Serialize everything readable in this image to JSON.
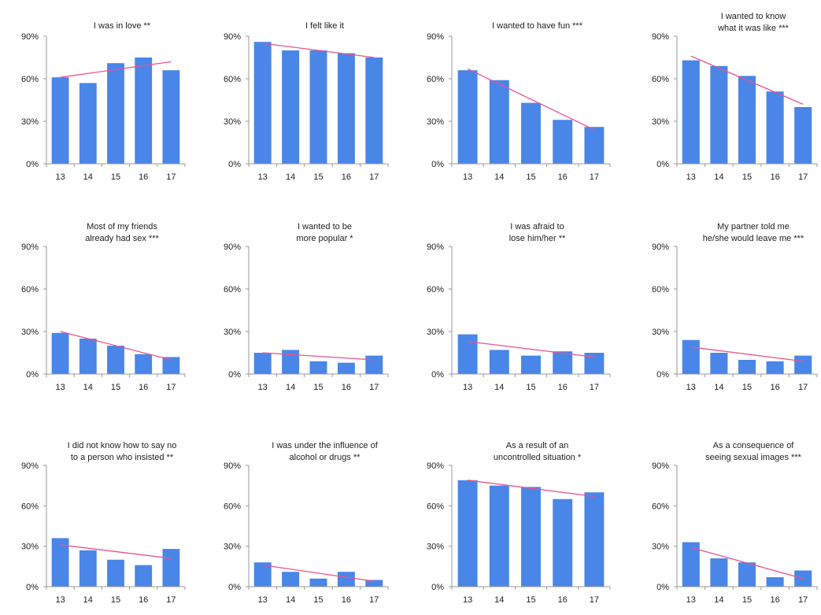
{
  "colors": {
    "bar": "#4a86e8",
    "trend": "#e8548c",
    "axis": "#9a9a9a",
    "text": "#222222"
  },
  "chart_data": [
    {
      "type": "bar",
      "title": "I was in love **",
      "categories": [
        "13",
        "14",
        "15",
        "16",
        "17"
      ],
      "values": [
        61,
        57,
        71,
        75,
        66
      ],
      "trend": [
        61,
        72
      ],
      "yticks": [
        "0%",
        "30%",
        "60%",
        "90%"
      ],
      "ylim": [
        0,
        90
      ]
    },
    {
      "type": "bar",
      "title": "I felt like it",
      "categories": [
        "13",
        "14",
        "15",
        "16",
        "17"
      ],
      "values": [
        86,
        80,
        80,
        78,
        75
      ],
      "trend": [
        85,
        75
      ],
      "yticks": [
        "0%",
        "30%",
        "60%",
        "90%"
      ],
      "ylim": [
        0,
        90
      ]
    },
    {
      "type": "bar",
      "title": "I wanted to have fun ***",
      "categories": [
        "13",
        "14",
        "15",
        "16",
        "17"
      ],
      "values": [
        66,
        59,
        43,
        31,
        26
      ],
      "trend": [
        67,
        24
      ],
      "yticks": [
        "0%",
        "30%",
        "60%",
        "90%"
      ],
      "ylim": [
        0,
        90
      ]
    },
    {
      "type": "bar",
      "title": "I wanted to know what it was like ***",
      "categories": [
        "13",
        "14",
        "15",
        "16",
        "17"
      ],
      "values": [
        73,
        69,
        62,
        51,
        40
      ],
      "trend": [
        76,
        42
      ],
      "yticks": [
        "0%",
        "30%",
        "60%",
        "90%"
      ],
      "ylim": [
        0,
        90
      ]
    },
    {
      "type": "bar",
      "title": "Most of my friends already had sex ***",
      "categories": [
        "13",
        "14",
        "15",
        "16",
        "17"
      ],
      "values": [
        29,
        25,
        20,
        14,
        12
      ],
      "trend": [
        30,
        10
      ],
      "yticks": [
        "0%",
        "30%",
        "60%",
        "90%"
      ],
      "ylim": [
        0,
        90
      ]
    },
    {
      "type": "bar",
      "title": "I wanted to be more popular *",
      "categories": [
        "13",
        "14",
        "15",
        "16",
        "17"
      ],
      "values": [
        15,
        17,
        9,
        8,
        13
      ],
      "trend": [
        15,
        10
      ],
      "yticks": [
        "0%",
        "30%",
        "60%",
        "90%"
      ],
      "ylim": [
        0,
        90
      ]
    },
    {
      "type": "bar",
      "title": "I was afraid to lose him/her **",
      "categories": [
        "13",
        "14",
        "15",
        "16",
        "17"
      ],
      "values": [
        28,
        17,
        13,
        16,
        15
      ],
      "trend": [
        23,
        12
      ],
      "yticks": [
        "0%",
        "30%",
        "60%",
        "90%"
      ],
      "ylim": [
        0,
        90
      ]
    },
    {
      "type": "bar",
      "title": "My partner told me he/she would leave me ***",
      "categories": [
        "13",
        "14",
        "15",
        "16",
        "17"
      ],
      "values": [
        24,
        15,
        10,
        9,
        13
      ],
      "trend": [
        19,
        9
      ],
      "yticks": [
        "0%",
        "30%",
        "60%",
        "90%"
      ],
      "ylim": [
        0,
        90
      ]
    },
    {
      "type": "bar",
      "title": "I did not know how to say no to a person who insisted **",
      "categories": [
        "13",
        "14",
        "15",
        "16",
        "17"
      ],
      "values": [
        36,
        27,
        20,
        16,
        28
      ],
      "trend": [
        31,
        21
      ],
      "yticks": [
        "0%",
        "30%",
        "60%",
        "90%"
      ],
      "ylim": [
        0,
        90
      ]
    },
    {
      "type": "bar",
      "title": "I was under the influence of alcohol or drugs **",
      "categories": [
        "13",
        "14",
        "15",
        "16",
        "17"
      ],
      "values": [
        18,
        11,
        6,
        11,
        5
      ],
      "trend": [
        16,
        4
      ],
      "yticks": [
        "0%",
        "30%",
        "60%",
        "90%"
      ],
      "ylim": [
        0,
        90
      ]
    },
    {
      "type": "bar",
      "title": "As a result of an uncontrolled situation *",
      "categories": [
        "13",
        "14",
        "15",
        "16",
        "17"
      ],
      "values": [
        79,
        75,
        74,
        65,
        70
      ],
      "trend": [
        79,
        67
      ],
      "yticks": [
        "0%",
        "30%",
        "60%",
        "90%"
      ],
      "ylim": [
        0,
        90
      ]
    },
    {
      "type": "bar",
      "title": "As a consequence of seeing sexual images ***",
      "categories": [
        "13",
        "14",
        "15",
        "16",
        "17"
      ],
      "values": [
        33,
        21,
        18,
        7,
        12
      ],
      "trend": [
        29,
        6
      ],
      "yticks": [
        "0%",
        "30%",
        "60%",
        "90%"
      ],
      "ylim": [
        0,
        90
      ]
    }
  ]
}
